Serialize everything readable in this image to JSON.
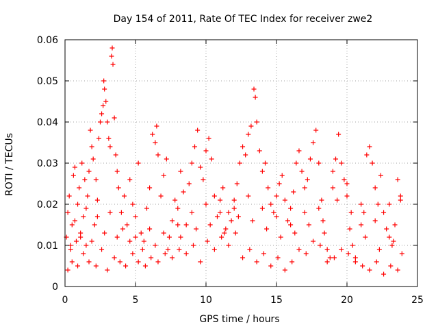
{
  "chart_data": {
    "type": "scatter",
    "title": "Day 154 of 2011, Rate Of TEC Index for receiver zwe2",
    "xlabel": "GPS time / hours",
    "ylabel": "ROTI / TECUs",
    "xlim": [
      0,
      25
    ],
    "ylim": [
      0,
      0.06
    ],
    "x_ticks": [
      "0",
      "5",
      "10",
      "15",
      "20",
      "25"
    ],
    "y_ticks": [
      "0",
      "0.01",
      "0.02",
      "0.03",
      "0.04",
      "0.05",
      "0.06"
    ],
    "grid": true,
    "marker": "+",
    "color": "#ff0000",
    "series": [
      {
        "name": "",
        "points": [
          [
            0.1,
            0.012
          ],
          [
            0.2,
            0.018
          ],
          [
            0.3,
            0.022
          ],
          [
            0.4,
            0.009
          ],
          [
            0.5,
            0.015
          ],
          [
            0.6,
            0.027
          ],
          [
            0.7,
            0.029
          ],
          [
            0.8,
            0.011
          ],
          [
            0.9,
            0.02
          ],
          [
            1.0,
            0.024
          ],
          [
            1.1,
            0.013
          ],
          [
            1.2,
            0.03
          ],
          [
            1.3,
            0.017
          ],
          [
            1.4,
            0.026
          ],
          [
            1.5,
            0.01
          ],
          [
            1.6,
            0.022
          ],
          [
            1.7,
            0.028
          ],
          [
            1.8,
            0.038
          ],
          [
            1.9,
            0.034
          ],
          [
            2.0,
            0.031
          ],
          [
            2.1,
            0.015
          ],
          [
            2.2,
            0.026
          ],
          [
            2.3,
            0.021
          ],
          [
            2.4,
            0.036
          ],
          [
            2.5,
            0.04
          ],
          [
            2.6,
            0.042
          ],
          [
            2.7,
            0.044
          ],
          [
            2.75,
            0.05
          ],
          [
            2.8,
            0.048
          ],
          [
            2.9,
            0.045
          ],
          [
            3.0,
            0.04
          ],
          [
            3.1,
            0.036
          ],
          [
            3.2,
            0.034
          ],
          [
            3.3,
            0.056
          ],
          [
            3.35,
            0.058
          ],
          [
            3.4,
            0.054
          ],
          [
            3.5,
            0.041
          ],
          [
            3.6,
            0.032
          ],
          [
            3.7,
            0.028
          ],
          [
            3.8,
            0.024
          ],
          [
            4.0,
            0.018
          ],
          [
            4.2,
            0.022
          ],
          [
            4.4,
            0.015
          ],
          [
            4.6,
            0.026
          ],
          [
            4.8,
            0.02
          ],
          [
            5.0,
            0.017
          ],
          [
            5.2,
            0.03
          ],
          [
            5.4,
            0.013
          ],
          [
            5.6,
            0.011
          ],
          [
            5.8,
            0.019
          ],
          [
            6.0,
            0.024
          ],
          [
            6.2,
            0.037
          ],
          [
            6.4,
            0.035
          ],
          [
            6.5,
            0.039
          ],
          [
            6.6,
            0.032
          ],
          [
            6.8,
            0.022
          ],
          [
            7.0,
            0.027
          ],
          [
            7.2,
            0.031
          ],
          [
            7.4,
            0.012
          ],
          [
            7.6,
            0.016
          ],
          [
            7.8,
            0.021
          ],
          [
            8.0,
            0.019
          ],
          [
            8.2,
            0.028
          ],
          [
            8.4,
            0.023
          ],
          [
            8.6,
            0.015
          ],
          [
            8.8,
            0.025
          ],
          [
            9.0,
            0.03
          ],
          [
            9.2,
            0.034
          ],
          [
            9.4,
            0.038
          ],
          [
            9.6,
            0.029
          ],
          [
            9.8,
            0.026
          ],
          [
            10.0,
            0.033
          ],
          [
            10.2,
            0.036
          ],
          [
            10.4,
            0.031
          ],
          [
            10.6,
            0.022
          ],
          [
            10.8,
            0.017
          ],
          [
            11.0,
            0.021
          ],
          [
            11.2,
            0.024
          ],
          [
            11.4,
            0.014
          ],
          [
            11.6,
            0.018
          ],
          [
            11.8,
            0.016
          ],
          [
            12.0,
            0.019
          ],
          [
            12.2,
            0.025
          ],
          [
            12.4,
            0.03
          ],
          [
            12.6,
            0.034
          ],
          [
            12.8,
            0.032
          ],
          [
            13.0,
            0.037
          ],
          [
            13.2,
            0.039
          ],
          [
            13.4,
            0.048
          ],
          [
            13.5,
            0.046
          ],
          [
            13.6,
            0.04
          ],
          [
            13.8,
            0.033
          ],
          [
            14.0,
            0.028
          ],
          [
            14.2,
            0.03
          ],
          [
            14.4,
            0.024
          ],
          [
            14.6,
            0.02
          ],
          [
            14.8,
            0.018
          ],
          [
            15.0,
            0.022
          ],
          [
            15.2,
            0.025
          ],
          [
            15.4,
            0.027
          ],
          [
            15.6,
            0.021
          ],
          [
            15.8,
            0.016
          ],
          [
            16.0,
            0.019
          ],
          [
            16.2,
            0.023
          ],
          [
            16.4,
            0.03
          ],
          [
            16.6,
            0.033
          ],
          [
            16.8,
            0.028
          ],
          [
            17.0,
            0.024
          ],
          [
            17.2,
            0.026
          ],
          [
            17.4,
            0.031
          ],
          [
            17.6,
            0.035
          ],
          [
            17.8,
            0.038
          ],
          [
            18.0,
            0.03
          ],
          [
            18.2,
            0.021
          ],
          [
            18.4,
            0.013
          ],
          [
            18.6,
            0.009
          ],
          [
            18.8,
            0.007
          ],
          [
            19.0,
            0.028
          ],
          [
            19.2,
            0.031
          ],
          [
            19.4,
            0.037
          ],
          [
            19.6,
            0.03
          ],
          [
            19.8,
            0.026
          ],
          [
            20.0,
            0.022
          ],
          [
            20.2,
            0.014
          ],
          [
            20.4,
            0.01
          ],
          [
            20.6,
            0.007
          ],
          [
            21.0,
            0.015
          ],
          [
            21.2,
            0.018
          ],
          [
            21.4,
            0.032
          ],
          [
            21.6,
            0.034
          ],
          [
            21.8,
            0.03
          ],
          [
            22.0,
            0.024
          ],
          [
            22.2,
            0.02
          ],
          [
            22.4,
            0.027
          ],
          [
            22.6,
            0.018
          ],
          [
            22.8,
            0.014
          ],
          [
            23.0,
            0.012
          ],
          [
            23.2,
            0.01
          ],
          [
            23.4,
            0.015
          ],
          [
            23.6,
            0.026
          ],
          [
            23.8,
            0.021
          ],
          [
            23.9,
            0.008
          ],
          [
            0.2,
            0.004
          ],
          [
            0.5,
            0.006
          ],
          [
            0.9,
            0.005
          ],
          [
            1.3,
            0.008
          ],
          [
            1.7,
            0.006
          ],
          [
            2.2,
            0.005
          ],
          [
            2.6,
            0.009
          ],
          [
            3.0,
            0.004
          ],
          [
            3.5,
            0.007
          ],
          [
            3.9,
            0.006
          ],
          [
            4.3,
            0.005
          ],
          [
            4.8,
            0.008
          ],
          [
            5.2,
            0.006
          ],
          [
            5.7,
            0.005
          ],
          [
            6.1,
            0.007
          ],
          [
            6.6,
            0.006
          ],
          [
            7.1,
            0.008
          ],
          [
            7.6,
            0.007
          ],
          [
            8.1,
            0.009
          ],
          [
            8.6,
            0.008
          ],
          [
            9.1,
            0.01
          ],
          [
            9.6,
            0.006
          ],
          [
            10.1,
            0.011
          ],
          [
            10.6,
            0.009
          ],
          [
            11.1,
            0.012
          ],
          [
            11.6,
            0.01
          ],
          [
            12.1,
            0.013
          ],
          [
            12.6,
            0.007
          ],
          [
            13.1,
            0.009
          ],
          [
            13.6,
            0.006
          ],
          [
            14.1,
            0.008
          ],
          [
            14.6,
            0.005
          ],
          [
            15.1,
            0.007
          ],
          [
            15.6,
            0.004
          ],
          [
            16.1,
            0.006
          ],
          [
            16.6,
            0.009
          ],
          [
            17.1,
            0.008
          ],
          [
            17.6,
            0.011
          ],
          [
            18.1,
            0.01
          ],
          [
            18.6,
            0.006
          ],
          [
            19.1,
            0.007
          ],
          [
            19.6,
            0.009
          ],
          [
            20.1,
            0.008
          ],
          [
            20.6,
            0.006
          ],
          [
            21.1,
            0.005
          ],
          [
            21.6,
            0.004
          ],
          [
            22.1,
            0.006
          ],
          [
            22.6,
            0.003
          ],
          [
            23.1,
            0.005
          ],
          [
            23.6,
            0.004
          ],
          [
            0.4,
            0.01
          ],
          [
            1.1,
            0.012
          ],
          [
            1.9,
            0.011
          ],
          [
            2.8,
            0.013
          ],
          [
            3.7,
            0.012
          ],
          [
            4.6,
            0.011
          ],
          [
            5.5,
            0.009
          ],
          [
            6.4,
            0.01
          ],
          [
            7.3,
            0.009
          ],
          [
            8.2,
            0.012
          ],
          [
            9.3,
            0.014
          ],
          [
            10.3,
            0.015
          ],
          [
            11.3,
            0.013
          ],
          [
            12.3,
            0.017
          ],
          [
            13.3,
            0.016
          ],
          [
            14.3,
            0.014
          ],
          [
            15.3,
            0.012
          ],
          [
            16.3,
            0.013
          ],
          [
            17.3,
            0.015
          ],
          [
            18.3,
            0.016
          ],
          [
            19.3,
            0.021
          ],
          [
            20.3,
            0.018
          ],
          [
            21.3,
            0.012
          ],
          [
            22.3,
            0.009
          ],
          [
            23.3,
            0.011
          ],
          [
            0.7,
            0.016
          ],
          [
            1.5,
            0.019
          ],
          [
            2.3,
            0.017
          ],
          [
            3.2,
            0.018
          ],
          [
            4.1,
            0.014
          ],
          [
            5.0,
            0.012
          ],
          [
            6.0,
            0.014
          ],
          [
            7.0,
            0.013
          ],
          [
            8.0,
            0.015
          ],
          [
            9.0,
            0.018
          ],
          [
            10.0,
            0.02
          ],
          [
            11.0,
            0.018
          ],
          [
            12.0,
            0.021
          ],
          [
            13.0,
            0.022
          ],
          [
            14.0,
            0.019
          ],
          [
            15.0,
            0.017
          ],
          [
            16.0,
            0.015
          ],
          [
            17.0,
            0.018
          ],
          [
            18.0,
            0.019
          ],
          [
            19.0,
            0.024
          ],
          [
            20.0,
            0.025
          ],
          [
            21.0,
            0.02
          ],
          [
            22.0,
            0.016
          ],
          [
            23.0,
            0.02
          ],
          [
            23.8,
            0.022
          ]
        ]
      }
    ]
  }
}
